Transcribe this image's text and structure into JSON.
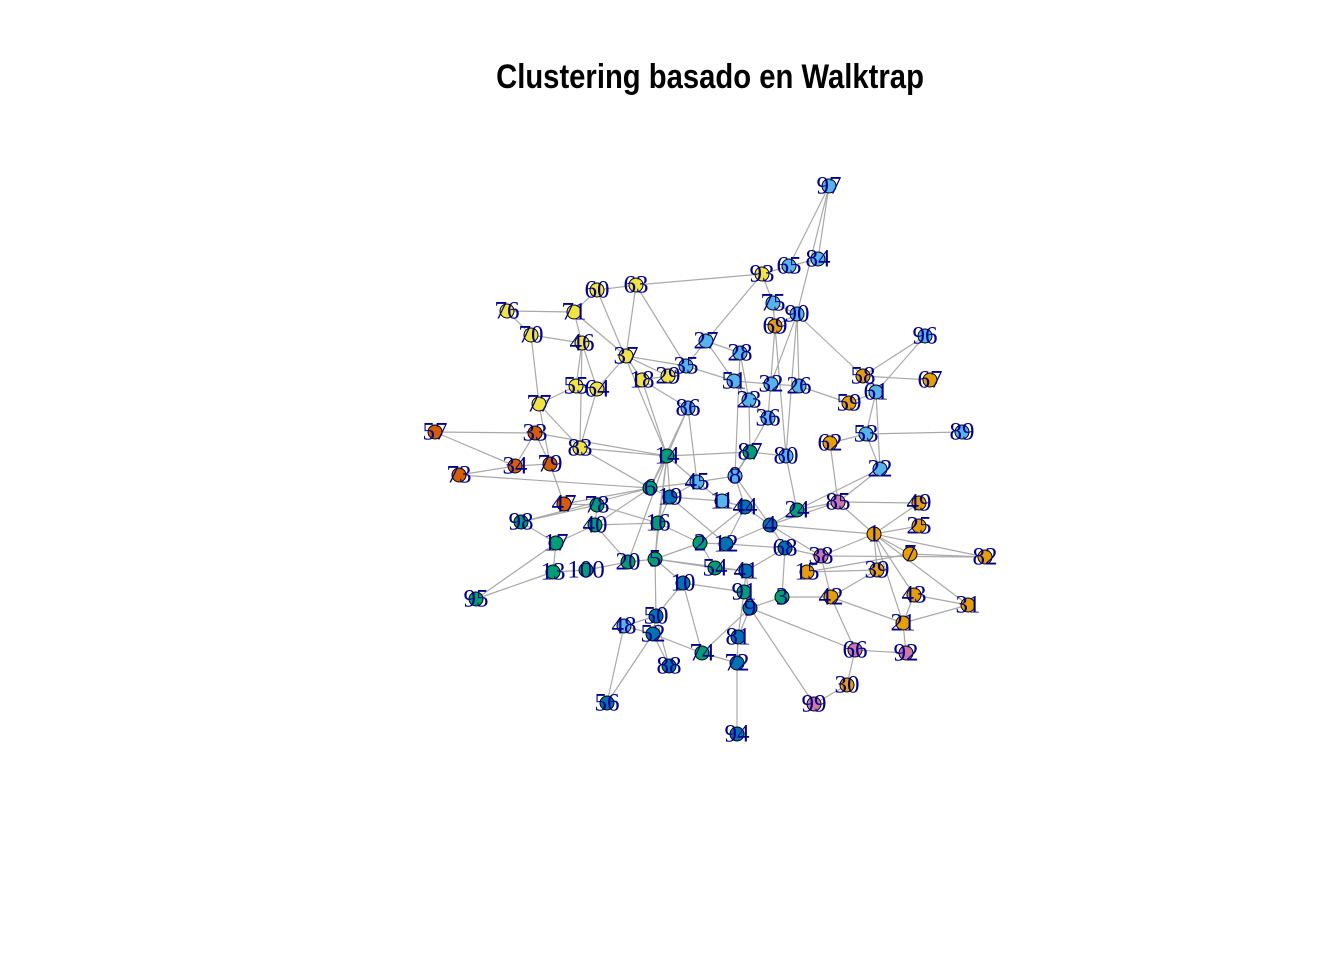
{
  "title": "Clustering basado en Walktrap",
  "colors": {
    "edge": "#a9a9a9",
    "node_border": "#000000",
    "label": "#00008b",
    "communities": {
      "yellow": "#f0e442",
      "skyblue": "#56b4e9",
      "green": "#009e73",
      "blue": "#0072b2",
      "orange": "#e69f00",
      "vermillion": "#d55e00",
      "pink": "#cc79a7"
    }
  },
  "nodes": [
    {
      "id": "97",
      "c": "skyblue"
    },
    {
      "id": "93",
      "c": "yellow"
    },
    {
      "id": "65",
      "c": "skyblue"
    },
    {
      "id": "84",
      "c": "skyblue"
    },
    {
      "id": "60",
      "c": "yellow"
    },
    {
      "id": "63",
      "c": "yellow"
    },
    {
      "id": "75",
      "c": "skyblue"
    },
    {
      "id": "90",
      "c": "skyblue"
    },
    {
      "id": "76",
      "c": "yellow"
    },
    {
      "id": "71",
      "c": "yellow"
    },
    {
      "id": "69",
      "c": "orange"
    },
    {
      "id": "70",
      "c": "yellow"
    },
    {
      "id": "46",
      "c": "yellow"
    },
    {
      "id": "27",
      "c": "skyblue"
    },
    {
      "id": "96",
      "c": "skyblue"
    },
    {
      "id": "37",
      "c": "yellow"
    },
    {
      "id": "28",
      "c": "skyblue"
    },
    {
      "id": "35",
      "c": "skyblue"
    },
    {
      "id": "58",
      "c": "orange"
    },
    {
      "id": "67",
      "c": "orange"
    },
    {
      "id": "55",
      "c": "yellow"
    },
    {
      "id": "64",
      "c": "yellow"
    },
    {
      "id": "18",
      "c": "yellow"
    },
    {
      "id": "29",
      "c": "yellow"
    },
    {
      "id": "51",
      "c": "skyblue"
    },
    {
      "id": "32",
      "c": "skyblue"
    },
    {
      "id": "26",
      "c": "skyblue"
    },
    {
      "id": "61",
      "c": "skyblue"
    },
    {
      "id": "77",
      "c": "yellow"
    },
    {
      "id": "86",
      "c": "skyblue"
    },
    {
      "id": "23",
      "c": "skyblue"
    },
    {
      "id": "59",
      "c": "orange"
    },
    {
      "id": "36",
      "c": "skyblue"
    },
    {
      "id": "57",
      "c": "vermillion"
    },
    {
      "id": "33",
      "c": "vermillion"
    },
    {
      "id": "53",
      "c": "skyblue"
    },
    {
      "id": "89",
      "c": "skyblue"
    },
    {
      "id": "83",
      "c": "yellow"
    },
    {
      "id": "62",
      "c": "orange"
    },
    {
      "id": "14",
      "c": "green"
    },
    {
      "id": "87",
      "c": "green"
    },
    {
      "id": "80",
      "c": "skyblue"
    },
    {
      "id": "34",
      "c": "vermillion"
    },
    {
      "id": "79",
      "c": "vermillion"
    },
    {
      "id": "22",
      "c": "skyblue"
    },
    {
      "id": "73",
      "c": "vermillion"
    },
    {
      "id": "8",
      "c": "skyblue"
    },
    {
      "id": "6",
      "c": "green"
    },
    {
      "id": "45",
      "c": "skyblue"
    },
    {
      "id": "19",
      "c": "blue"
    },
    {
      "id": "85",
      "c": "pink"
    },
    {
      "id": "49",
      "c": "orange"
    },
    {
      "id": "47",
      "c": "vermillion"
    },
    {
      "id": "78",
      "c": "green"
    },
    {
      "id": "11",
      "c": "skyblue"
    },
    {
      "id": "44",
      "c": "blue"
    },
    {
      "id": "24",
      "c": "green"
    },
    {
      "id": "98",
      "c": "green"
    },
    {
      "id": "40",
      "c": "green"
    },
    {
      "id": "16",
      "c": "green"
    },
    {
      "id": "4",
      "c": "blue"
    },
    {
      "id": "25",
      "c": "orange"
    },
    {
      "id": "1",
      "c": "orange"
    },
    {
      "id": "17",
      "c": "green"
    },
    {
      "id": "2",
      "c": "green"
    },
    {
      "id": "12",
      "c": "blue"
    },
    {
      "id": "68",
      "c": "blue"
    },
    {
      "id": "7",
      "c": "orange"
    },
    {
      "id": "82",
      "c": "orange"
    },
    {
      "id": "20",
      "c": "green"
    },
    {
      "id": "5",
      "c": "green"
    },
    {
      "id": "38",
      "c": "pink"
    },
    {
      "id": "13",
      "c": "green"
    },
    {
      "id": "100",
      "c": "green"
    },
    {
      "id": "54",
      "c": "green"
    },
    {
      "id": "41",
      "c": "blue"
    },
    {
      "id": "15",
      "c": "orange"
    },
    {
      "id": "39",
      "c": "orange"
    },
    {
      "id": "10",
      "c": "blue"
    },
    {
      "id": "91",
      "c": "green"
    },
    {
      "id": "95",
      "c": "green"
    },
    {
      "id": "3",
      "c": "green"
    },
    {
      "id": "42",
      "c": "orange"
    },
    {
      "id": "43",
      "c": "orange"
    },
    {
      "id": "31",
      "c": "orange"
    },
    {
      "id": "9",
      "c": "blue"
    },
    {
      "id": "50",
      "c": "blue"
    },
    {
      "id": "48",
      "c": "skyblue"
    },
    {
      "id": "52",
      "c": "blue"
    },
    {
      "id": "21",
      "c": "orange"
    },
    {
      "id": "81",
      "c": "blue"
    },
    {
      "id": "66",
      "c": "pink"
    },
    {
      "id": "92",
      "c": "pink"
    },
    {
      "id": "88",
      "c": "blue"
    },
    {
      "id": "74",
      "c": "green"
    },
    {
      "id": "72",
      "c": "blue"
    },
    {
      "id": "30",
      "c": "orange"
    },
    {
      "id": "56",
      "c": "blue"
    },
    {
      "id": "99",
      "c": "pink"
    },
    {
      "id": "94",
      "c": "blue"
    }
  ],
  "edges": [
    [
      "97",
      "84"
    ],
    [
      "97",
      "65"
    ],
    [
      "97",
      "90"
    ],
    [
      "84",
      "65"
    ],
    [
      "93",
      "65"
    ],
    [
      "93",
      "75"
    ],
    [
      "93",
      "27"
    ],
    [
      "63",
      "93"
    ],
    [
      "63",
      "60"
    ],
    [
      "63",
      "35"
    ],
    [
      "63",
      "37"
    ],
    [
      "60",
      "71"
    ],
    [
      "60",
      "14"
    ],
    [
      "76",
      "70"
    ],
    [
      "76",
      "71"
    ],
    [
      "71",
      "46"
    ],
    [
      "71",
      "37"
    ],
    [
      "70",
      "77"
    ],
    [
      "70",
      "46"
    ],
    [
      "46",
      "55"
    ],
    [
      "46",
      "64"
    ],
    [
      "46",
      "83"
    ],
    [
      "37",
      "18"
    ],
    [
      "37",
      "29"
    ],
    [
      "37",
      "64"
    ],
    [
      "37",
      "35"
    ],
    [
      "27",
      "35"
    ],
    [
      "27",
      "28"
    ],
    [
      "27",
      "51"
    ],
    [
      "28",
      "23"
    ],
    [
      "28",
      "8"
    ],
    [
      "35",
      "51"
    ],
    [
      "35",
      "29"
    ],
    [
      "18",
      "29"
    ],
    [
      "18",
      "14"
    ],
    [
      "18",
      "86"
    ],
    [
      "55",
      "64"
    ],
    [
      "55",
      "77"
    ],
    [
      "64",
      "83"
    ],
    [
      "77",
      "83"
    ],
    [
      "77",
      "79"
    ],
    [
      "83",
      "14"
    ],
    [
      "83",
      "6"
    ],
    [
      "75",
      "90"
    ],
    [
      "75",
      "69"
    ],
    [
      "69",
      "90"
    ],
    [
      "90",
      "26"
    ],
    [
      "90",
      "32"
    ],
    [
      "90",
      "58"
    ],
    [
      "90",
      "80"
    ],
    [
      "69",
      "36"
    ],
    [
      "75",
      "80"
    ],
    [
      "96",
      "58"
    ],
    [
      "96",
      "61"
    ],
    [
      "58",
      "61"
    ],
    [
      "58",
      "67"
    ],
    [
      "61",
      "59"
    ],
    [
      "61",
      "53"
    ],
    [
      "61",
      "22"
    ],
    [
      "59",
      "26"
    ],
    [
      "26",
      "32"
    ],
    [
      "32",
      "51"
    ],
    [
      "51",
      "23"
    ],
    [
      "23",
      "36"
    ],
    [
      "36",
      "8"
    ],
    [
      "23",
      "87"
    ],
    [
      "86",
      "14"
    ],
    [
      "86",
      "45"
    ],
    [
      "86",
      "6"
    ],
    [
      "53",
      "89"
    ],
    [
      "53",
      "62"
    ],
    [
      "53",
      "22"
    ],
    [
      "62",
      "85"
    ],
    [
      "22",
      "85"
    ],
    [
      "22",
      "24"
    ],
    [
      "80",
      "24"
    ],
    [
      "80",
      "87"
    ],
    [
      "87",
      "14"
    ],
    [
      "87",
      "8"
    ],
    [
      "14",
      "6"
    ],
    [
      "14",
      "19"
    ],
    [
      "14",
      "16"
    ],
    [
      "14",
      "20"
    ],
    [
      "14",
      "5"
    ],
    [
      "14",
      "45"
    ],
    [
      "57",
      "33"
    ],
    [
      "57",
      "34"
    ],
    [
      "33",
      "79"
    ],
    [
      "33",
      "34"
    ],
    [
      "79",
      "47"
    ],
    [
      "79",
      "34"
    ],
    [
      "73",
      "34"
    ],
    [
      "73",
      "6"
    ],
    [
      "33",
      "14"
    ],
    [
      "47",
      "78"
    ],
    [
      "47",
      "6"
    ],
    [
      "6",
      "19"
    ],
    [
      "6",
      "45"
    ],
    [
      "6",
      "98"
    ],
    [
      "6",
      "40"
    ],
    [
      "19",
      "45"
    ],
    [
      "19",
      "16"
    ],
    [
      "19",
      "12"
    ],
    [
      "19",
      "11"
    ],
    [
      "45",
      "8"
    ],
    [
      "45",
      "11"
    ],
    [
      "8",
      "44"
    ],
    [
      "8",
      "4"
    ],
    [
      "11",
      "44"
    ],
    [
      "44",
      "4"
    ],
    [
      "44",
      "12"
    ],
    [
      "44",
      "2"
    ],
    [
      "4",
      "24"
    ],
    [
      "4",
      "68"
    ],
    [
      "4",
      "38"
    ],
    [
      "4",
      "12"
    ],
    [
      "4",
      "85"
    ],
    [
      "4",
      "1"
    ],
    [
      "24",
      "85"
    ],
    [
      "85",
      "49"
    ],
    [
      "85",
      "1"
    ],
    [
      "49",
      "1"
    ],
    [
      "25",
      "1"
    ],
    [
      "1",
      "7"
    ],
    [
      "1",
      "82"
    ],
    [
      "1",
      "39"
    ],
    [
      "1",
      "38"
    ],
    [
      "1",
      "43"
    ],
    [
      "1",
      "21"
    ],
    [
      "7",
      "82"
    ],
    [
      "7",
      "15"
    ],
    [
      "39",
      "15"
    ],
    [
      "39",
      "42"
    ],
    [
      "38",
      "68"
    ],
    [
      "38",
      "42"
    ],
    [
      "38",
      "15"
    ],
    [
      "68",
      "12"
    ],
    [
      "68",
      "41"
    ],
    [
      "68",
      "3"
    ],
    [
      "12",
      "2"
    ],
    [
      "2",
      "54"
    ],
    [
      "2",
      "16"
    ],
    [
      "2",
      "5"
    ],
    [
      "16",
      "5"
    ],
    [
      "16",
      "40"
    ],
    [
      "40",
      "17"
    ],
    [
      "40",
      "20"
    ],
    [
      "98",
      "17"
    ],
    [
      "17",
      "13"
    ],
    [
      "13",
      "100"
    ],
    [
      "100",
      "20"
    ],
    [
      "20",
      "5"
    ],
    [
      "5",
      "10"
    ],
    [
      "5",
      "50"
    ],
    [
      "5",
      "41"
    ],
    [
      "5",
      "54"
    ],
    [
      "54",
      "41"
    ],
    [
      "41",
      "91"
    ],
    [
      "41",
      "9"
    ],
    [
      "91",
      "9"
    ],
    [
      "91",
      "10"
    ],
    [
      "9",
      "3"
    ],
    [
      "9",
      "81"
    ],
    [
      "9",
      "74"
    ],
    [
      "9",
      "99"
    ],
    [
      "9",
      "66"
    ],
    [
      "3",
      "42"
    ],
    [
      "42",
      "21"
    ],
    [
      "21",
      "43"
    ],
    [
      "21",
      "31"
    ],
    [
      "21",
      "92"
    ],
    [
      "43",
      "31"
    ],
    [
      "92",
      "66"
    ],
    [
      "66",
      "30"
    ],
    [
      "66",
      "42"
    ],
    [
      "50",
      "52"
    ],
    [
      "50",
      "48"
    ],
    [
      "48",
      "52"
    ],
    [
      "52",
      "88"
    ],
    [
      "52",
      "74"
    ],
    [
      "74",
      "72"
    ],
    [
      "72",
      "81"
    ],
    [
      "72",
      "94"
    ],
    [
      "52",
      "56"
    ],
    [
      "95",
      "17"
    ],
    [
      "95",
      "13"
    ],
    [
      "10",
      "50"
    ],
    [
      "10",
      "74"
    ],
    [
      "81",
      "91"
    ],
    [
      "88",
      "50"
    ],
    [
      "56",
      "48"
    ],
    [
      "99",
      "30"
    ],
    [
      "82",
      "38"
    ],
    [
      "31",
      "1"
    ],
    [
      "78",
      "40"
    ],
    [
      "78",
      "16"
    ],
    [
      "98",
      "78"
    ]
  ]
}
